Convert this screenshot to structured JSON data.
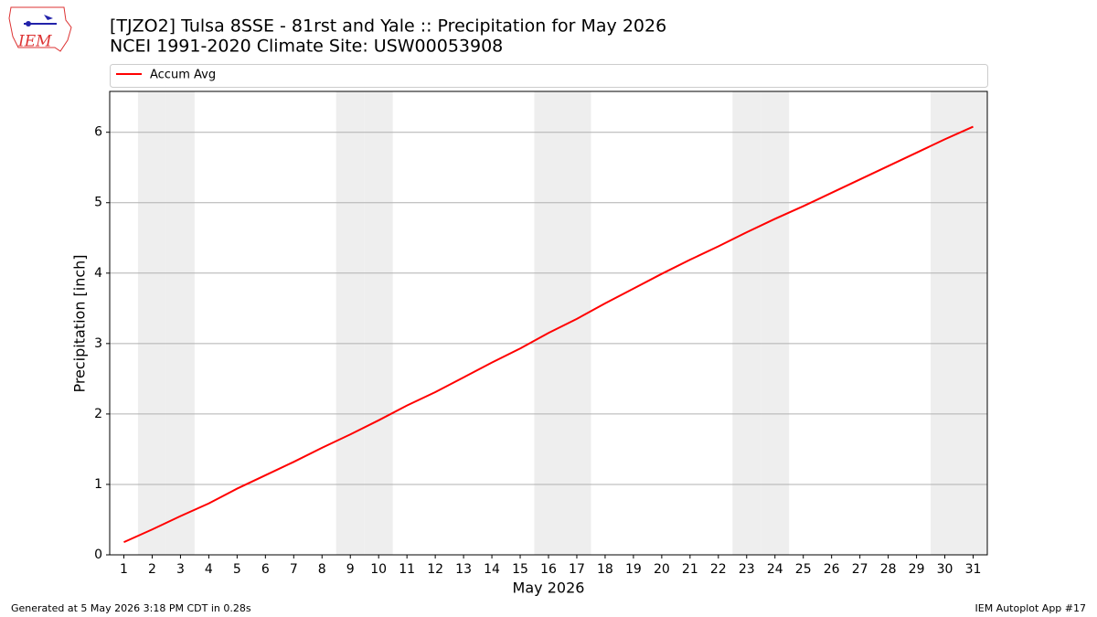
{
  "logo": "IEM",
  "chart_data": {
    "type": "line",
    "title": "[TJZO2] Tulsa 8SSE - 81rst and Yale :: Precipitation for May 2026",
    "subtitle": "NCEI 1991-2020 Climate Site: USW00053908",
    "x_label": "May 2026",
    "y_label": "Precipitation [inch]",
    "x": [
      1,
      2,
      3,
      4,
      5,
      6,
      7,
      8,
      9,
      10,
      11,
      12,
      13,
      14,
      15,
      16,
      17,
      18,
      19,
      20,
      21,
      22,
      23,
      24,
      25,
      26,
      27,
      28,
      29,
      30,
      31
    ],
    "series": [
      {
        "name": "Accum Avg",
        "color": "#ff0000",
        "values": [
          0.18,
          0.36,
          0.55,
          0.73,
          0.94,
          1.13,
          1.32,
          1.52,
          1.71,
          1.91,
          2.12,
          2.31,
          2.52,
          2.73,
          2.93,
          3.15,
          3.35,
          3.57,
          3.78,
          3.99,
          4.19,
          4.38,
          4.58,
          4.77,
          4.95,
          5.14,
          5.33,
          5.52,
          5.71,
          5.9,
          6.08
        ]
      }
    ],
    "xlim": [
      0.5,
      31.5
    ],
    "xticks": [
      1,
      2,
      3,
      4,
      5,
      6,
      7,
      8,
      9,
      10,
      11,
      12,
      13,
      14,
      15,
      16,
      17,
      18,
      19,
      20,
      21,
      22,
      23,
      24,
      25,
      26,
      27,
      28,
      29,
      30,
      31
    ],
    "ylim": [
      0,
      6.58
    ],
    "yticks": [
      0,
      1,
      2,
      3,
      4,
      5,
      6
    ],
    "grid": true,
    "legend": "top",
    "shade": {
      "color": "#eeeeee",
      "days": [
        2,
        3,
        9,
        10,
        16,
        17,
        23,
        24,
        30,
        31
      ]
    },
    "footer_left": "Generated at 5 May 2026 3:18 PM CDT in 0.28s",
    "footer_right": "IEM Autoplot App #17"
  }
}
